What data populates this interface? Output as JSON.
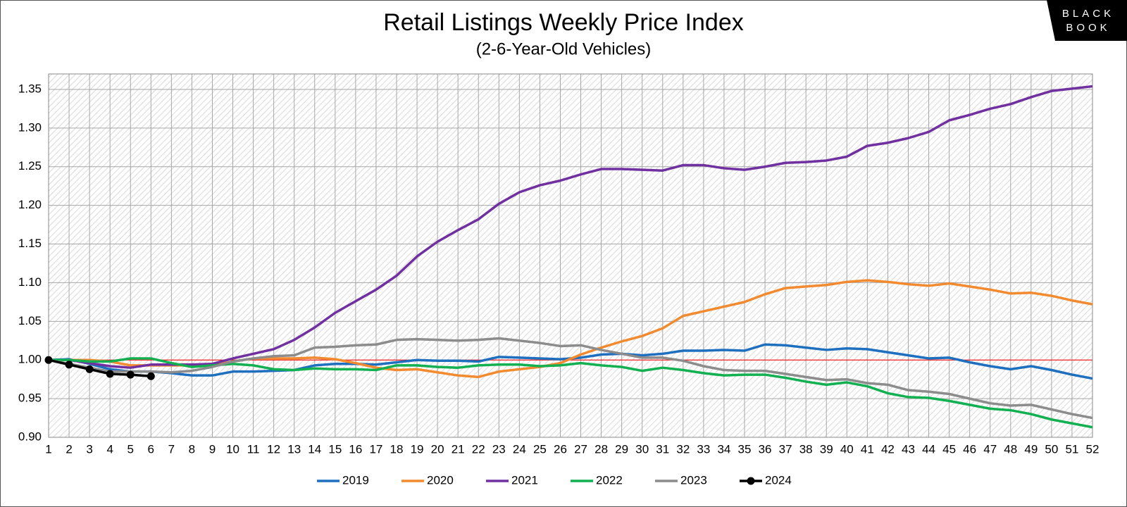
{
  "chart_data": {
    "type": "line",
    "title": "Retail Listings Weekly Price Index",
    "subtitle": "(2-6-Year-Old Vehicles)",
    "logo": [
      "BLACK",
      "BOOK"
    ],
    "x": [
      1,
      2,
      3,
      4,
      5,
      6,
      7,
      8,
      9,
      10,
      11,
      12,
      13,
      14,
      15,
      16,
      17,
      18,
      19,
      20,
      21,
      22,
      23,
      24,
      25,
      26,
      27,
      28,
      29,
      30,
      31,
      32,
      33,
      34,
      35,
      36,
      37,
      38,
      39,
      40,
      41,
      42,
      43,
      44,
      45,
      46,
      47,
      48,
      49,
      50,
      51,
      52
    ],
    "xlim": [
      1,
      52
    ],
    "xticks": [
      1,
      2,
      3,
      4,
      5,
      6,
      7,
      8,
      9,
      10,
      11,
      12,
      13,
      14,
      15,
      16,
      17,
      18,
      19,
      20,
      21,
      22,
      23,
      24,
      25,
      26,
      27,
      28,
      29,
      30,
      31,
      32,
      33,
      34,
      35,
      36,
      37,
      38,
      39,
      40,
      41,
      42,
      43,
      44,
      45,
      46,
      47,
      48,
      49,
      50,
      51,
      52
    ],
    "ylim": [
      0.9,
      1.37
    ],
    "yticks": [
      {
        "value": 0.9,
        "label": "0.90"
      },
      0.95,
      {
        "value": 1.0,
        "label": "1.00"
      },
      1.05,
      {
        "value": 1.1,
        "label": "1.10"
      },
      1.15,
      {
        "value": 1.2,
        "label": "1.20"
      },
      1.25,
      {
        "value": 1.3,
        "label": "1.30"
      },
      1.35
    ],
    "grid": true,
    "reference_line": {
      "value": 1.0,
      "color": "#ff0000"
    },
    "legend": "bottom",
    "series": [
      {
        "name": "2019",
        "color": "#1f6fbf",
        "values": [
          1.0,
          1.001,
          0.995,
          0.988,
          0.985,
          0.985,
          0.983,
          0.98,
          0.98,
          0.985,
          0.985,
          0.986,
          0.987,
          0.993,
          0.995,
          0.995,
          0.994,
          0.997,
          1.0,
          0.999,
          0.999,
          0.998,
          1.004,
          1.003,
          1.002,
          1.001,
          1.003,
          1.007,
          1.008,
          1.006,
          1.008,
          1.012,
          1.012,
          1.013,
          1.012,
          1.02,
          1.019,
          1.016,
          1.013,
          1.015,
          1.014,
          1.01,
          1.006,
          1.002,
          1.003,
          0.997,
          0.992,
          0.988,
          0.992,
          0.987,
          0.981,
          0.976
        ]
      },
      {
        "name": "2020",
        "color": "#f28a30",
        "values": [
          1.0,
          1.0,
          1.0,
          0.998,
          0.993,
          0.993,
          0.993,
          0.993,
          0.993,
          0.998,
          1.002,
          1.002,
          1.002,
          1.003,
          1.001,
          0.996,
          0.99,
          0.987,
          0.988,
          0.984,
          0.98,
          0.978,
          0.985,
          0.988,
          0.991,
          0.996,
          1.007,
          1.016,
          1.024,
          1.031,
          1.041,
          1.057,
          1.063,
          1.069,
          1.075,
          1.085,
          1.093,
          1.095,
          1.097,
          1.101,
          1.103,
          1.101,
          1.098,
          1.096,
          1.099,
          1.095,
          1.091,
          1.086,
          1.087,
          1.083,
          1.077,
          1.072
        ]
      },
      {
        "name": "2021",
        "color": "#7030a0",
        "values": [
          1.0,
          1.0,
          0.996,
          0.992,
          0.99,
          0.994,
          0.994,
          0.994,
          0.995,
          1.002,
          1.008,
          1.014,
          1.026,
          1.042,
          1.061,
          1.076,
          1.091,
          1.109,
          1.134,
          1.153,
          1.168,
          1.182,
          1.202,
          1.217,
          1.226,
          1.232,
          1.24,
          1.247,
          1.247,
          1.246,
          1.245,
          1.252,
          1.252,
          1.248,
          1.246,
          1.25,
          1.255,
          1.256,
          1.258,
          1.263,
          1.277,
          1.281,
          1.287,
          1.295,
          1.31,
          1.317,
          1.325,
          1.331,
          1.34,
          1.348,
          1.351,
          1.354
        ]
      },
      {
        "name": "2022",
        "color": "#12b050",
        "values": [
          1.0,
          1.0,
          0.998,
          0.998,
          1.002,
          1.002,
          0.996,
          0.991,
          0.993,
          0.995,
          0.993,
          0.988,
          0.987,
          0.989,
          0.988,
          0.988,
          0.987,
          0.993,
          0.993,
          0.991,
          0.99,
          0.993,
          0.994,
          0.994,
          0.992,
          0.993,
          0.996,
          0.993,
          0.991,
          0.986,
          0.99,
          0.987,
          0.983,
          0.98,
          0.981,
          0.981,
          0.977,
          0.972,
          0.968,
          0.971,
          0.966,
          0.957,
          0.952,
          0.951,
          0.947,
          0.942,
          0.937,
          0.935,
          0.93,
          0.923,
          0.918,
          0.913
        ]
      },
      {
        "name": "2023",
        "color": "#8c8c8c",
        "values": [
          1.0,
          0.995,
          0.99,
          0.985,
          0.985,
          0.985,
          0.984,
          0.986,
          0.991,
          0.998,
          1.002,
          1.005,
          1.006,
          1.016,
          1.017,
          1.019,
          1.02,
          1.026,
          1.027,
          1.026,
          1.025,
          1.026,
          1.028,
          1.025,
          1.022,
          1.018,
          1.019,
          1.013,
          1.008,
          1.003,
          1.003,
          0.999,
          0.992,
          0.987,
          0.986,
          0.986,
          0.982,
          0.978,
          0.974,
          0.975,
          0.97,
          0.968,
          0.961,
          0.959,
          0.956,
          0.95,
          0.944,
          0.941,
          0.942,
          0.936,
          0.93,
          0.925
        ]
      },
      {
        "name": "2024",
        "color": "#000000",
        "markers": true,
        "values": [
          1.0,
          0.994,
          0.988,
          0.982,
          0.981,
          0.979,
          null,
          null,
          null,
          null,
          null,
          null,
          null,
          null,
          null,
          null,
          null,
          null,
          null,
          null,
          null,
          null,
          null,
          null,
          null,
          null,
          null,
          null,
          null,
          null,
          null,
          null,
          null,
          null,
          null,
          null,
          null,
          null,
          null,
          null,
          null,
          null,
          null,
          null,
          null,
          null,
          null,
          null,
          null,
          null,
          null,
          null
        ]
      }
    ]
  }
}
